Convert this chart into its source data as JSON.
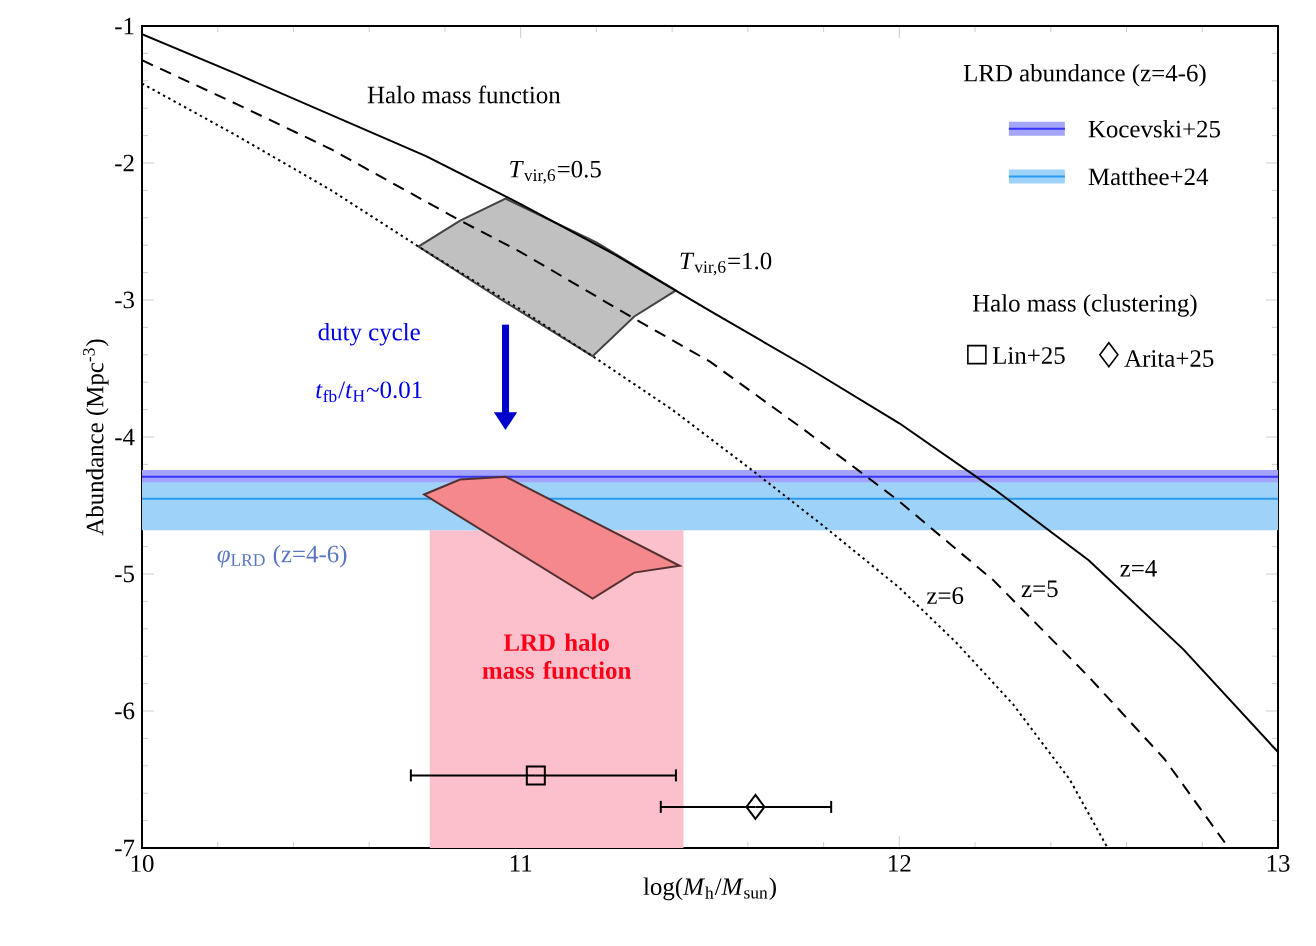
{
  "chart_data": {
    "type": "line",
    "xlabel": "log(*M*$_{h}$/*M*$_{sun}$)",
    "ylabel": "Abundance (Mpc$^{-3}$)",
    "legend_title": "LRD abundance (z=4-6)",
    "legend": "top right",
    "xlim": [
      10,
      13
    ],
    "ylim": [
      -7,
      -1
    ],
    "xticks": [
      10,
      11,
      12,
      13
    ],
    "yticks": [
      -7,
      -6,
      -5,
      -4,
      -3,
      -2,
      -1
    ],
    "series": [
      {
        "type": "area",
        "color": "#fbc0cc",
        "line_style": "none",
        "x": [
          10.76,
          11.43,
          11.43,
          10.76
        ],
        "values": [
          -7,
          -7,
          -4.68,
          -4.68
        ]
      },
      {
        "name": "Kocevski+25",
        "color": "#3535f5",
        "x": [
          10,
          13
        ],
        "values": [
          -4.29,
          -4.29
        ],
        "lower": [
          -4.36,
          -4.36
        ],
        "upper": [
          -4.24,
          -4.24
        ]
      },
      {
        "name": "Matthee+24",
        "color": "#2a9af0",
        "x": [
          10,
          13
        ],
        "values": [
          -4.45,
          -4.45
        ],
        "lower": [
          -4.68,
          -4.68
        ],
        "upper": [
          -4.33,
          -4.33
        ]
      },
      {
        "type": "area",
        "color": "#c0c0c0",
        "line_style": "solid",
        "x": [
          10.96,
          11.2,
          11.41,
          11.3,
          11.19,
          10.95,
          10.73,
          10.84
        ],
        "values": [
          -2.26,
          -2.58,
          -2.93,
          -3.12,
          -3.41,
          -3.0,
          -2.61,
          -2.42
        ]
      },
      {
        "type": "area",
        "color": "#f4888d",
        "line_style": "solid",
        "x": [
          10.745,
          10.84,
          10.96,
          11.42,
          11.3,
          11.19
        ],
        "values": [
          -4.42,
          -4.31,
          -4.29,
          -4.94,
          -4.99,
          -5.18
        ]
      },
      {
        "name": "z=4",
        "color": "#000000",
        "line_style": "solid",
        "x": [
          10,
          10.25,
          10.5,
          10.75,
          11.0,
          11.25,
          11.5,
          11.75,
          12.0,
          12.25,
          12.5,
          12.75,
          13.0
        ],
        "values": [
          -1.06,
          -1.35,
          -1.65,
          -1.95,
          -2.3,
          -2.67,
          -3.08,
          -3.48,
          -3.9,
          -4.38,
          -4.9,
          -5.55,
          -6.3
        ]
      },
      {
        "name": "z=5",
        "color": "#000000",
        "line_style": "dashed",
        "x": [
          10,
          10.25,
          10.5,
          10.84,
          11.0,
          11.29,
          11.5,
          11.75,
          11.89,
          12.0,
          12.25,
          12.5,
          12.7,
          12.87
        ],
        "values": [
          -1.25,
          -1.57,
          -1.9,
          -2.42,
          -2.65,
          -3.12,
          -3.45,
          -3.95,
          -4.24,
          -4.47,
          -5.05,
          -5.75,
          -6.35,
          -7
        ]
      },
      {
        "name": "z=6",
        "color": "#000000",
        "line_style": "dotted",
        "x": [
          10,
          10.25,
          10.5,
          10.73,
          11.0,
          11.19,
          11.4,
          11.61,
          11.8,
          12.0,
          12.15,
          12.3,
          12.45,
          12.55
        ],
        "values": [
          -1.42,
          -1.8,
          -2.2,
          -2.61,
          -3.07,
          -3.41,
          -3.8,
          -4.24,
          -4.65,
          -5.1,
          -5.5,
          -5.95,
          -6.5,
          -7
        ]
      },
      {
        "name": "Lin+25",
        "type": "scatter",
        "marker": "square",
        "color": "#000000",
        "x": [
          11.04
        ],
        "values": [
          -6.47
        ],
        "xerrors": [
          [
            10.71,
            11.41
          ]
        ]
      },
      {
        "name": "Arita+25",
        "type": "scatter",
        "marker": "diamond",
        "color": "#000000",
        "x": [
          11.62
        ],
        "values": [
          -6.7
        ],
        "xerrors": [
          [
            11.37,
            11.82
          ]
        ]
      }
    ],
    "annotations": [
      "Halo mass function",
      {
        "text": "*T*$_{vir,6}$=0.5",
        "x": 10.96,
        "y": -2.26
      },
      {
        "text": "*T*$_{vir,6}$=1.0",
        "x": 11.41,
        "y": -2.93
      },
      "duty cycle",
      "*t*$_{fb}$/*t*$_{H}$~0.01",
      "*φ*$_{LRD}$ (z=4-6)",
      "**LRD halo mass function**",
      "Halo mass (clustering)"
    ]
  }
}
